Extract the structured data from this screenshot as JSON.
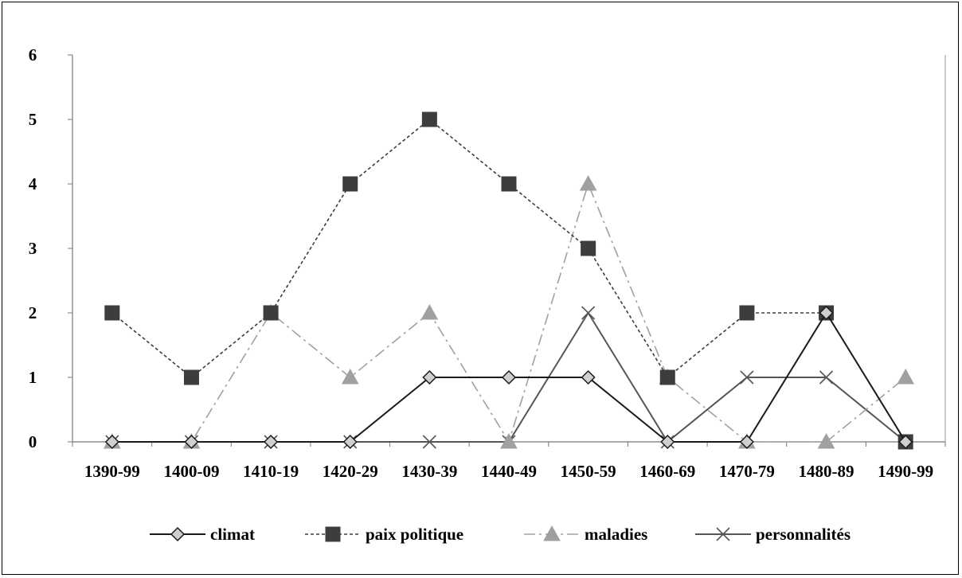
{
  "chart_data": {
    "type": "line",
    "title": "",
    "xlabel": "",
    "ylabel": "",
    "categories": [
      "1390-99",
      "1400-09",
      "1410-19",
      "1420-29",
      "1430-39",
      "1440-49",
      "1450-59",
      "1460-69",
      "1470-79",
      "1480-89",
      "1490-99"
    ],
    "ylim": [
      0,
      6
    ],
    "yticks": [
      "0",
      "1",
      "2",
      "3",
      "4",
      "5",
      "6"
    ],
    "grid": false,
    "legend_position": "bottom",
    "series": [
      {
        "name": "climat",
        "values": [
          0,
          0,
          0,
          0,
          1,
          1,
          1,
          0,
          0,
          2,
          0
        ],
        "color": "#1a1a1a",
        "marker": "diamond",
        "dash": "solid"
      },
      {
        "name": "paix politique",
        "values": [
          2,
          1,
          2,
          4,
          5,
          4,
          3,
          1,
          2,
          2,
          0
        ],
        "color": "#3d3d3d",
        "marker": "square",
        "dash": "dotted"
      },
      {
        "name": "maladies",
        "values": [
          0,
          0,
          2,
          1,
          2,
          0,
          4,
          1,
          0,
          0,
          1
        ],
        "color": "#a0a0a0",
        "marker": "triangle",
        "dash": "dashdot"
      },
      {
        "name": "personnalités",
        "values": [
          0,
          0,
          0,
          0,
          0,
          0,
          2,
          0,
          1,
          1,
          0
        ],
        "color": "#555555",
        "marker": "cross",
        "dash": "solid"
      }
    ]
  }
}
